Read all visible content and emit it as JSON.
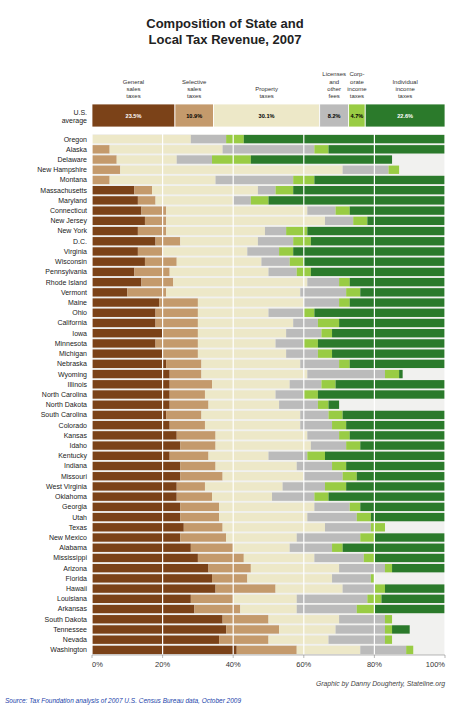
{
  "chart_data": [
    {
      "type": "bar",
      "orientation": "horizontal",
      "stacked": true,
      "data_labels": true,
      "tick_labels": "y",
      "title": "Composition of State and\nLocal Tax Revenue, 2007",
      "categories": [
        "U.S.\naverage"
      ],
      "xlim": [
        0,
        100
      ],
      "series": [
        {
          "name": "General\nsales\ntaxes",
          "color": "#7B4218",
          "values": [
            23.5
          ],
          "value_labels": [
            "23.5%"
          ]
        },
        {
          "name": "Selective\nsales\ntaxes",
          "color": "#C49A6C",
          "values": [
            10.9
          ],
          "value_labels": [
            "10.9%"
          ]
        },
        {
          "name": "Property\ntaxes",
          "color": "#EDE8C8",
          "values": [
            30.1
          ],
          "value_labels": [
            "30.1%"
          ]
        },
        {
          "name": "Licenses\nand\nother\nfees",
          "color": "#BBBBBB",
          "values": [
            8.2
          ],
          "value_labels": [
            "8.2%"
          ]
        },
        {
          "name": "Corp-\norate\nincome\ntaxes",
          "color": "#99CC44",
          "values": [
            4.7
          ],
          "value_labels": [
            "4.7%"
          ]
        },
        {
          "name": "Individual\nincome\ntaxes",
          "color": "#2B7A2B",
          "values": [
            22.6
          ],
          "value_labels": [
            "22.6%"
          ]
        }
      ]
    },
    {
      "type": "bar",
      "orientation": "horizontal",
      "stacked": true,
      "grid": true,
      "categories": [
        "Oregon",
        "Alaska",
        "Delaware",
        "New Hampshire",
        "Montana",
        "Massachusetts",
        "Maryland",
        "Connecticut",
        "New Jersey",
        "New York",
        "D.C.",
        "Virginia",
        "Wisconsin",
        "Pennsylvania",
        "Rhode Island",
        "Vermont",
        "Maine",
        "Ohio",
        "California",
        "Iowa",
        "Minnesota",
        "Michigan",
        "Nebraska",
        "Wyoming",
        "Illinois",
        "North Carolina",
        "North Dakota",
        "South Carolina",
        "Colorado",
        "Kansas",
        "Idaho",
        "Kentucky",
        "Indiana",
        "Missouri",
        "West Virginia",
        "Oklahoma",
        "Georgia",
        "Utah",
        "Texas",
        "New Mexico",
        "Alabama",
        "Mississippi",
        "Arizona",
        "Florida",
        "Hawaii",
        "Louisiana",
        "Arkansas",
        "South Dakota",
        "Tennessee",
        "Nevada",
        "Washington"
      ],
      "xlim": [
        0,
        100
      ],
      "xticks": [
        {
          "value": 0,
          "label": "0%"
        },
        {
          "value": 20,
          "label": "20%"
        },
        {
          "value": 40,
          "label": "40%"
        },
        {
          "value": 60,
          "label": "60%"
        },
        {
          "value": 80,
          "label": "80%"
        },
        {
          "value": 100,
          "label": "100%"
        }
      ],
      "series": [
        {
          "color": "#7B4218",
          "values": [
            0,
            0,
            0,
            0,
            0,
            12,
            13,
            14,
            15,
            13,
            18,
            13,
            15,
            12,
            14,
            10,
            19,
            18,
            18,
            20,
            18,
            20,
            21,
            22,
            22,
            22,
            22,
            21,
            22,
            24,
            25,
            22,
            25,
            25,
            24,
            24,
            25,
            25,
            26,
            25,
            28,
            30,
            33,
            34,
            35,
            28,
            29,
            37,
            38,
            36,
            41
          ]
        },
        {
          "color": "#C49A6C",
          "values": [
            0,
            5,
            7,
            8,
            5,
            5,
            5,
            7,
            6,
            8,
            7,
            7,
            9,
            10,
            9,
            11,
            11,
            12,
            12,
            10,
            12,
            10,
            10,
            9,
            12,
            10,
            11,
            10,
            10,
            11,
            10,
            11,
            10,
            12,
            8,
            10,
            11,
            11,
            11,
            13,
            12,
            13,
            12,
            10,
            17,
            12,
            13,
            13,
            15,
            14,
            17
          ]
        },
        {
          "color": "#EDE8C8",
          "values": [
            28,
            32,
            17,
            63,
            30,
            30,
            22,
            40,
            45,
            28,
            22,
            24,
            24,
            28,
            38,
            38,
            30,
            20,
            27,
            25,
            22,
            25,
            28,
            30,
            22,
            20,
            20,
            28,
            27,
            26,
            27,
            17,
            23,
            23,
            22,
            17,
            27,
            25,
            29,
            20,
            16,
            20,
            25,
            24,
            19,
            18,
            16,
            20,
            16,
            17,
            18
          ]
        },
        {
          "color": "#BBBBBB",
          "values": [
            10,
            26,
            10,
            13,
            22,
            5,
            5,
            8,
            8,
            6,
            10,
            9,
            8,
            8,
            9,
            13,
            10,
            10,
            7,
            10,
            8,
            9,
            11,
            22,
            9,
            8,
            11,
            8,
            9,
            9,
            10,
            11,
            10,
            11,
            12,
            12,
            10,
            14,
            13,
            18,
            12,
            14,
            13,
            11,
            9,
            20,
            17,
            13,
            14,
            16,
            13
          ]
        },
        {
          "color": "#99CC44",
          "values": [
            5,
            4,
            11,
            3,
            6,
            5,
            5,
            4,
            4,
            6,
            5,
            4,
            4,
            4,
            3,
            4,
            3,
            3,
            6,
            3,
            4,
            4,
            3,
            4,
            4,
            4,
            3,
            4,
            4,
            3,
            4,
            5,
            4,
            4,
            6,
            4,
            3,
            4,
            4,
            4,
            3,
            3,
            2,
            1,
            3,
            4,
            5,
            2,
            2,
            2,
            2
          ]
        },
        {
          "color": "#2B7A2B",
          "values": [
            57,
            33,
            40,
            0,
            37,
            43,
            50,
            27,
            22,
            39,
            38,
            43,
            40,
            38,
            27,
            24,
            27,
            37,
            30,
            32,
            36,
            32,
            27,
            1,
            31,
            36,
            3,
            29,
            28,
            27,
            24,
            34,
            28,
            25,
            28,
            33,
            24,
            21,
            0,
            20,
            29,
            20,
            15,
            0,
            17,
            18,
            20,
            0,
            5,
            0,
            0
          ]
        }
      ],
      "annotations": [
        "Graphic by Danny Dougherty, Stateline.org",
        "Source: Tax Foundation analysis of 2007 U.S. Census Bureau data, October 2009"
      ]
    }
  ]
}
